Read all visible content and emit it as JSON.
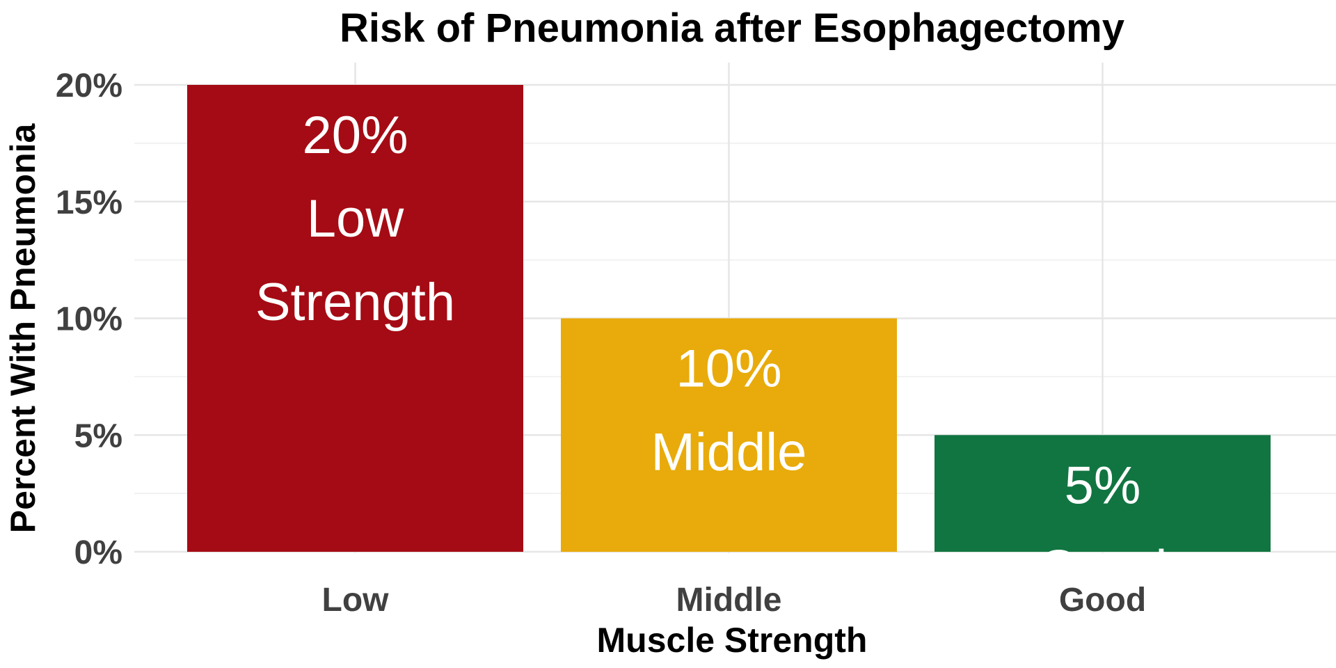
{
  "chart_data": {
    "type": "bar",
    "title": "Risk of Pneumonia after Esophagectomy",
    "xlabel": "Muscle Strength",
    "ylabel": "Percent With Pneumonia",
    "categories": [
      "Low",
      "Middle",
      "Good"
    ],
    "values": [
      20,
      10,
      5
    ],
    "ylim": [
      0,
      20
    ],
    "y_ticks": [
      0,
      5,
      10,
      15,
      20
    ],
    "y_tick_labels": [
      "0%",
      "5%",
      "10%",
      "15%",
      "20%"
    ],
    "bar_labels": [
      [
        "20%",
        "Low",
        "Strength"
      ],
      [
        "10%",
        "Middle"
      ],
      [
        "5%",
        "Good"
      ]
    ],
    "colors": [
      "#a50b14",
      "#e8ab0b",
      "#117541"
    ],
    "grid": true,
    "legend": "none"
  }
}
